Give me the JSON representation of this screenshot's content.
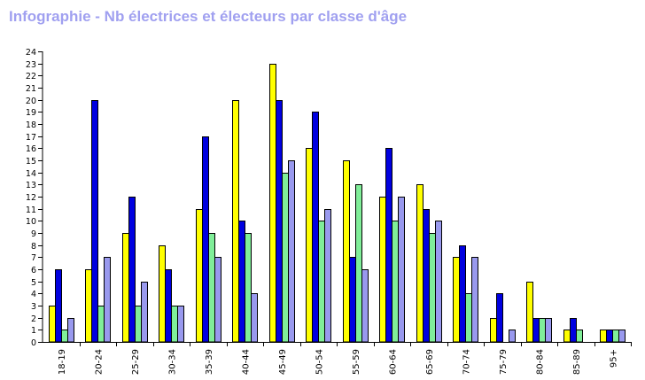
{
  "chart_data": {
    "type": "bar",
    "title": "Infographie - Nb électrices et électeurs par classe d'âge",
    "xlabel": "",
    "ylabel": "",
    "ylim": [
      0,
      24
    ],
    "yticks": [
      0,
      1,
      2,
      3,
      4,
      5,
      6,
      7,
      8,
      9,
      10,
      11,
      12,
      13,
      14,
      15,
      16,
      17,
      18,
      19,
      20,
      21,
      22,
      23,
      24
    ],
    "categories": [
      "18-19",
      "20-24",
      "25-29",
      "30-34",
      "35-39",
      "40-44",
      "45-49",
      "50-54",
      "55-59",
      "60-64",
      "65-69",
      "70-74",
      "75-79",
      "80-84",
      "85-89",
      "95+"
    ],
    "series": [
      {
        "color": "#ffff00",
        "values": [
          3,
          6,
          9,
          8,
          11,
          20,
          23,
          16,
          15,
          12,
          13,
          7,
          2,
          5,
          1,
          1
        ]
      },
      {
        "color": "#0000e0",
        "values": [
          6,
          20,
          12,
          6,
          17,
          10,
          20,
          19,
          7,
          16,
          11,
          8,
          4,
          2,
          2,
          1
        ]
      },
      {
        "color": "#80ee99",
        "values": [
          1,
          3,
          3,
          3,
          9,
          9,
          14,
          10,
          13,
          10,
          9,
          4,
          0,
          2,
          1,
          1
        ]
      },
      {
        "color": "#9999ee",
        "values": [
          2,
          7,
          5,
          3,
          7,
          4,
          15,
          11,
          6,
          12,
          10,
          7,
          1,
          2,
          0,
          1
        ]
      }
    ],
    "grid": false,
    "legend": "none"
  }
}
